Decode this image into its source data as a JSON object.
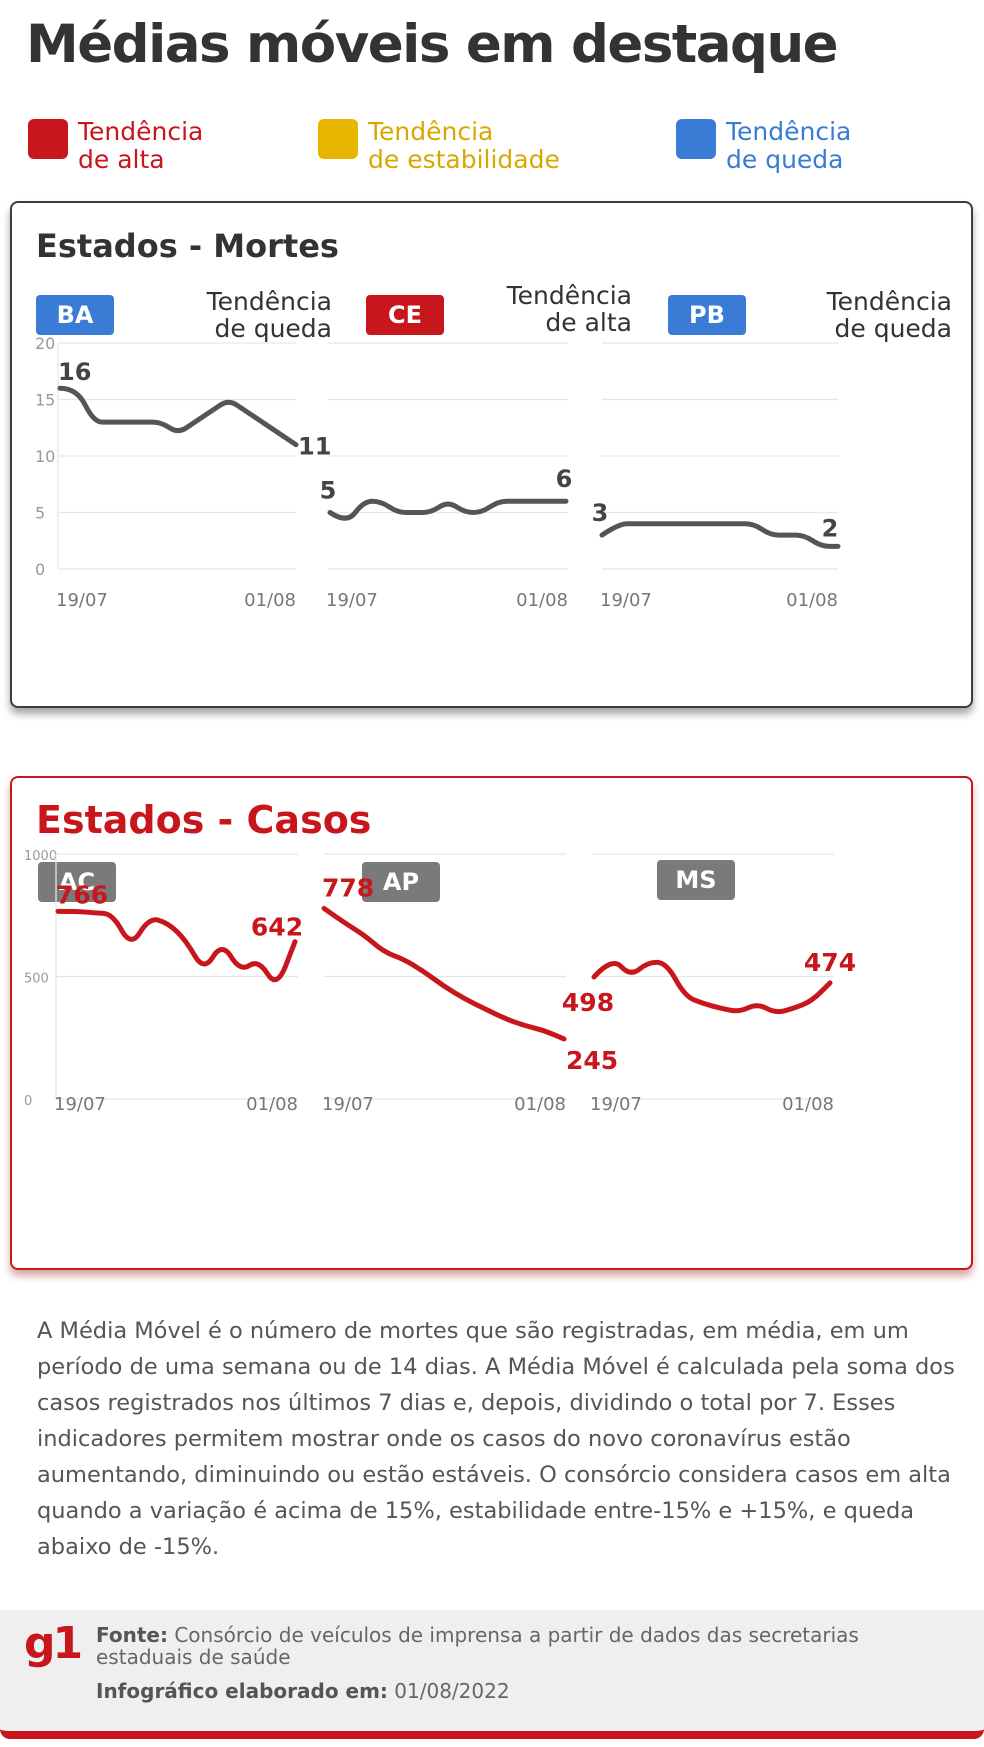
{
  "title": "Médias móveis em destaque",
  "legend": [
    {
      "line1": "Tendência",
      "line2": "de alta",
      "color": "#c8161d"
    },
    {
      "line1": "Tendência",
      "line2": "de estabilidade",
      "color": "#e6b600"
    },
    {
      "line1": "Tendência",
      "line2": "de queda",
      "color": "#3a7bd5"
    }
  ],
  "deaths": {
    "title": "Estados - Mortes",
    "states": [
      {
        "code": "BA",
        "trend_line1": "Tendência",
        "trend_line2": "de queda",
        "badge_color": "#3a7bd5"
      },
      {
        "code": "CE",
        "trend_line1": "Tendência",
        "trend_line2": "de alta",
        "badge_color": "#c8161d"
      },
      {
        "code": "PB",
        "trend_line1": "Tendência",
        "trend_line2": "de queda",
        "badge_color": "#3a7bd5"
      }
    ]
  },
  "cases": {
    "title": "Estados - Casos",
    "states": [
      {
        "code": "AC",
        "badge_color": "#7a7a7a"
      },
      {
        "code": "AP",
        "badge_color": "#7a7a7a"
      },
      {
        "code": "MS",
        "badge_color": "#7a7a7a"
      }
    ]
  },
  "chart_data": [
    {
      "type": "line",
      "title": "Estados - Mortes",
      "ylim": [
        0,
        20
      ],
      "yticks": [
        "0",
        "5",
        "10",
        "15",
        "20"
      ],
      "x_tick_labels": [
        "19/07",
        "01/08"
      ],
      "line_color": "#555555",
      "series": [
        {
          "name": "BA",
          "values": [
            16,
            16,
            13,
            13,
            13,
            13,
            13,
            12,
            13,
            14,
            15,
            14,
            13,
            12,
            11
          ],
          "start_label": "16",
          "end_label": "11"
        },
        {
          "name": "CE",
          "values": [
            5,
            4,
            6,
            6,
            5,
            5,
            5,
            6,
            5,
            5,
            6,
            6,
            6,
            6,
            6
          ],
          "start_label": "5",
          "end_label": "6"
        },
        {
          "name": "PB",
          "values": [
            3,
            4,
            4,
            4,
            4,
            4,
            4,
            4,
            4,
            4,
            3,
            3,
            3,
            2,
            2
          ],
          "start_label": "3",
          "end_label": "2"
        }
      ]
    },
    {
      "type": "line",
      "title": "Estados - Casos",
      "ylim": [
        0,
        1000
      ],
      "yticks": [
        "0",
        "500",
        "1000"
      ],
      "x_tick_labels": [
        "19/07",
        "01/08"
      ],
      "line_color": "#c8161d",
      "series": [
        {
          "name": "AC",
          "values": [
            766,
            766,
            760,
            755,
            620,
            740,
            720,
            650,
            520,
            640,
            520,
            570,
            450,
            642
          ],
          "start_label": "766",
          "end_label": "642"
        },
        {
          "name": "AP",
          "values": [
            778,
            720,
            670,
            600,
            570,
            520,
            460,
            410,
            370,
            330,
            300,
            280,
            245
          ],
          "start_label": "778",
          "end_label": "245"
        },
        {
          "name": "MS",
          "values": [
            498,
            580,
            500,
            560,
            555,
            420,
            390,
            370,
            355,
            390,
            350,
            370,
            400,
            474
          ],
          "start_label": "498",
          "end_label": "474"
        }
      ]
    }
  ],
  "description": "A Média Móvel é o número de mortes que são registradas, em média, em um período de uma semana ou de 14 dias. A Média Móvel é calculada pela soma dos casos registrados nos últimos 7 dias e, depois, dividindo o total por 7. Esses indicadores permitem mostrar onde os casos do novo coronavírus estão aumentando, diminuindo ou estão estáveis. O consórcio considera casos em alta quando a variação é acima de 15%, estabilidade entre-15% e +15%, e queda abaixo de -15%.",
  "footer": {
    "logo": "g1",
    "source_label": "Fonte:",
    "source_text": "Consórcio de veículos de imprensa a partir de dados das secretarias estaduais de saúde",
    "date_label": "Infográfico elaborado em:",
    "date_text": "01/08/2022"
  }
}
